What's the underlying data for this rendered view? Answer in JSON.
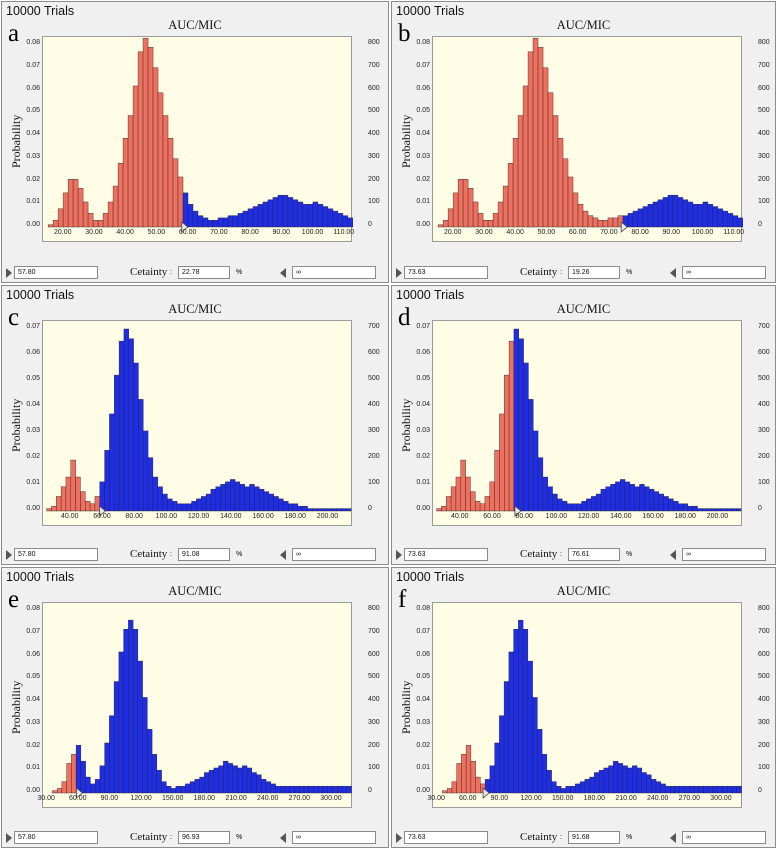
{
  "common": {
    "y_label": "Probability",
    "certainty_label": "Cetainty",
    "colon": ":",
    "percent": "%"
  },
  "panels": [
    {
      "trials": "10000 Trials",
      "letter": "a",
      "title": "AUC/MIC",
      "lower": "57.80",
      "certainty": "22.78",
      "upper": "∞"
    },
    {
      "trials": "10000 Trials",
      "letter": "b",
      "title": "AUC/MIC",
      "lower": "73.63",
      "certainty": "19.26",
      "upper": "∞"
    },
    {
      "trials": "10000 Trials",
      "letter": "c",
      "title": "AUC/MIC",
      "lower": "57.80",
      "certainty": "91.08",
      "upper": "∞"
    },
    {
      "trials": "10000 Trials",
      "letter": "d",
      "title": "AUC/MIC",
      "lower": "73.63",
      "certainty": "76.61",
      "upper": "∞"
    },
    {
      "trials": "10000 Trials",
      "letter": "e",
      "title": "AUC/MIC",
      "lower": "57.80",
      "certainty": "96.93",
      "upper": "∞"
    },
    {
      "trials": "10000 Trials",
      "letter": "f",
      "title": "AUC/MIC",
      "lower": "73.63",
      "certainty": "91.68",
      "upper": "∞"
    }
  ],
  "chart_data": [
    {
      "panel": "a",
      "type": "bar",
      "title": "AUC/MIC",
      "ylabel": "Probability",
      "xlim": [
        14,
        112
      ],
      "ylim": [
        0,
        0.08
      ],
      "yticks": [
        "0.00",
        "0.01",
        "0.02",
        "0.03",
        "0.04",
        "0.05",
        "0.06",
        "0.07",
        "0.08"
      ],
      "rticks": [
        "0",
        "100",
        "200",
        "300",
        "400",
        "500",
        "600",
        "700",
        "800"
      ],
      "xticks": [
        20,
        30,
        40,
        50,
        60,
        70,
        80,
        90,
        100,
        110
      ],
      "xtick_labels": [
        "20.00",
        "30.00",
        "40.00",
        "50.00",
        "60.00",
        "70.00",
        "80.00",
        "90.00",
        "100.00",
        "110.00"
      ],
      "bin_start": 15,
      "bin_width": 1.6,
      "threshold": 57.8,
      "color_below": "#f07060",
      "color_above": "#1f2ee6",
      "values": [
        0.001,
        0.003,
        0.008,
        0.015,
        0.021,
        0.021,
        0.017,
        0.011,
        0.006,
        0.003,
        0.003,
        0.006,
        0.011,
        0.018,
        0.028,
        0.039,
        0.049,
        0.062,
        0.077,
        0.083,
        0.079,
        0.07,
        0.059,
        0.049,
        0.039,
        0.03,
        0.022,
        0.015,
        0.01,
        0.007,
        0.005,
        0.004,
        0.003,
        0.003,
        0.004,
        0.004,
        0.005,
        0.005,
        0.006,
        0.007,
        0.008,
        0.009,
        0.01,
        0.011,
        0.012,
        0.013,
        0.014,
        0.014,
        0.013,
        0.012,
        0.011,
        0.01,
        0.01,
        0.011,
        0.01,
        0.009,
        0.008,
        0.007,
        0.006,
        0.005,
        0.004,
        0.003
      ]
    },
    {
      "panel": "b",
      "type": "bar",
      "title": "AUC/MIC",
      "ylabel": "Probability",
      "xlim": [
        14,
        112
      ],
      "ylim": [
        0,
        0.08
      ],
      "yticks": [
        "0.00",
        "0.01",
        "0.02",
        "0.03",
        "0.04",
        "0.05",
        "0.06",
        "0.07",
        "0.08"
      ],
      "rticks": [
        "0",
        "100",
        "200",
        "300",
        "400",
        "500",
        "600",
        "700",
        "800"
      ],
      "xticks": [
        20,
        30,
        40,
        50,
        60,
        70,
        80,
        90,
        100,
        110
      ],
      "xtick_labels": [
        "20.00",
        "30.00",
        "40.00",
        "50.00",
        "60.00",
        "70.00",
        "80.00",
        "90.00",
        "100.00",
        "110.00"
      ],
      "bin_start": 15,
      "bin_width": 1.6,
      "threshold": 73.63,
      "color_below": "#f07060",
      "color_above": "#1f2ee6",
      "values": [
        0.001,
        0.003,
        0.008,
        0.015,
        0.021,
        0.021,
        0.017,
        0.011,
        0.006,
        0.003,
        0.003,
        0.006,
        0.011,
        0.018,
        0.028,
        0.039,
        0.049,
        0.062,
        0.077,
        0.083,
        0.079,
        0.07,
        0.059,
        0.049,
        0.039,
        0.03,
        0.022,
        0.015,
        0.01,
        0.007,
        0.005,
        0.004,
        0.003,
        0.003,
        0.004,
        0.004,
        0.005,
        0.005,
        0.006,
        0.007,
        0.008,
        0.009,
        0.01,
        0.011,
        0.012,
        0.013,
        0.014,
        0.014,
        0.013,
        0.012,
        0.011,
        0.01,
        0.01,
        0.011,
        0.01,
        0.009,
        0.008,
        0.007,
        0.006,
        0.005,
        0.004,
        0.003
      ]
    },
    {
      "panel": "c",
      "type": "bar",
      "title": "AUC/MIC",
      "ylabel": "Probability",
      "xlim": [
        24,
        214
      ],
      "ylim": [
        0,
        0.075
      ],
      "yticks": [
        "0.00",
        "0.01",
        "0.02",
        "0.03",
        "0.04",
        "0.05",
        "0.06",
        "0.07"
      ],
      "rticks": [
        "0",
        "100",
        "200",
        "300",
        "400",
        "500",
        "600",
        "700"
      ],
      "xticks": [
        40,
        60,
        80,
        100,
        120,
        140,
        160,
        180,
        200
      ],
      "xtick_labels": [
        "40.00",
        "60.00",
        "80.00",
        "100.00",
        "120.00",
        "140.00",
        "160.00",
        "180.00",
        "200.00"
      ],
      "bin_start": 25,
      "bin_width": 3.0,
      "threshold": 57.8,
      "color_below": "#f07060",
      "color_above": "#1f2ee6",
      "values": [
        0.001,
        0.002,
        0.006,
        0.01,
        0.014,
        0.021,
        0.014,
        0.008,
        0.004,
        0.003,
        0.006,
        0.012,
        0.025,
        0.04,
        0.056,
        0.07,
        0.075,
        0.071,
        0.061,
        0.046,
        0.033,
        0.022,
        0.014,
        0.01,
        0.007,
        0.005,
        0.004,
        0.003,
        0.003,
        0.003,
        0.004,
        0.005,
        0.006,
        0.007,
        0.009,
        0.01,
        0.011,
        0.012,
        0.013,
        0.012,
        0.011,
        0.01,
        0.011,
        0.01,
        0.009,
        0.008,
        0.007,
        0.006,
        0.005,
        0.004,
        0.003,
        0.003,
        0.002,
        0.002,
        0.001,
        0.001,
        0.001,
        0.001,
        0.001,
        0.001,
        0.001,
        0.001,
        0.001
      ]
    },
    {
      "panel": "d",
      "type": "bar",
      "title": "AUC/MIC",
      "ylabel": "Probability",
      "xlim": [
        24,
        214
      ],
      "ylim": [
        0,
        0.075
      ],
      "yticks": [
        "0.00",
        "0.01",
        "0.02",
        "0.03",
        "0.04",
        "0.05",
        "0.06",
        "0.07"
      ],
      "rticks": [
        "0",
        "100",
        "200",
        "300",
        "400",
        "500",
        "600",
        "700"
      ],
      "xticks": [
        40,
        60,
        80,
        100,
        120,
        140,
        160,
        180,
        200
      ],
      "xtick_labels": [
        "40.00",
        "60.00",
        "80.00",
        "100.00",
        "120.00",
        "140.00",
        "160.00",
        "180.00",
        "200.00"
      ],
      "bin_start": 25,
      "bin_width": 3.0,
      "threshold": 73.63,
      "color_below": "#f07060",
      "color_above": "#1f2ee6",
      "values": [
        0.001,
        0.002,
        0.006,
        0.01,
        0.014,
        0.021,
        0.014,
        0.008,
        0.004,
        0.003,
        0.006,
        0.012,
        0.025,
        0.04,
        0.056,
        0.07,
        0.075,
        0.071,
        0.061,
        0.046,
        0.033,
        0.022,
        0.014,
        0.01,
        0.007,
        0.005,
        0.004,
        0.003,
        0.003,
        0.003,
        0.004,
        0.005,
        0.006,
        0.007,
        0.009,
        0.01,
        0.011,
        0.012,
        0.013,
        0.012,
        0.011,
        0.01,
        0.011,
        0.01,
        0.009,
        0.008,
        0.007,
        0.006,
        0.005,
        0.004,
        0.003,
        0.003,
        0.002,
        0.002,
        0.001,
        0.001,
        0.001,
        0.001,
        0.001,
        0.001,
        0.001,
        0.001,
        0.001
      ]
    },
    {
      "panel": "e",
      "type": "bar",
      "title": "AUC/MIC",
      "ylabel": "Probability",
      "xlim": [
        28,
        318
      ],
      "ylim": [
        0,
        0.08
      ],
      "yticks": [
        "0.00",
        "0.01",
        "0.02",
        "0.03",
        "0.04",
        "0.05",
        "0.06",
        "0.07",
        "0.08"
      ],
      "rticks": [
        "0",
        "100",
        "200",
        "300",
        "400",
        "500",
        "600",
        "700",
        "800"
      ],
      "xticks": [
        30,
        60,
        90,
        120,
        150,
        180,
        210,
        240,
        270,
        300
      ],
      "xtick_labels": [
        "30.00",
        "60.00",
        "90.00",
        "120.00",
        "150.00",
        "180.00",
        "210.00",
        "240.00",
        "270.00",
        "300.00"
      ],
      "bin_start": 35,
      "bin_width": 4.5,
      "threshold": 57.8,
      "color_below": "#f07060",
      "color_above": "#1f2ee6",
      "values": [
        0.001,
        0.002,
        0.005,
        0.013,
        0.017,
        0.021,
        0.014,
        0.007,
        0.004,
        0.006,
        0.012,
        0.022,
        0.034,
        0.049,
        0.062,
        0.072,
        0.076,
        0.072,
        0.058,
        0.042,
        0.028,
        0.017,
        0.01,
        0.005,
        0.003,
        0.002,
        0.003,
        0.003,
        0.004,
        0.005,
        0.006,
        0.007,
        0.009,
        0.01,
        0.011,
        0.012,
        0.014,
        0.013,
        0.012,
        0.011,
        0.012,
        0.011,
        0.009,
        0.008,
        0.006,
        0.005,
        0.004,
        0.003,
        0.003,
        0.003,
        0.003,
        0.003,
        0.003,
        0.003,
        0.003,
        0.003,
        0.003,
        0.003,
        0.003,
        0.003,
        0.003,
        0.003,
        0.003
      ]
    },
    {
      "panel": "f",
      "type": "bar",
      "title": "AUC/MIC",
      "ylabel": "Probability",
      "xlim": [
        28,
        318
      ],
      "ylim": [
        0,
        0.08
      ],
      "yticks": [
        "0.00",
        "0.01",
        "0.02",
        "0.03",
        "0.04",
        "0.05",
        "0.06",
        "0.07",
        "0.08"
      ],
      "rticks": [
        "0",
        "100",
        "200",
        "300",
        "400",
        "500",
        "600",
        "700",
        "800"
      ],
      "xticks": [
        30,
        60,
        90,
        120,
        150,
        180,
        210,
        240,
        270,
        300
      ],
      "xtick_labels": [
        "30.00",
        "60.00",
        "90.00",
        "120.00",
        "150.00",
        "180.00",
        "210.00",
        "240.00",
        "270.00",
        "300.00"
      ],
      "bin_start": 35,
      "bin_width": 4.5,
      "threshold": 73.63,
      "color_below": "#f07060",
      "color_above": "#1f2ee6",
      "values": [
        0.001,
        0.002,
        0.005,
        0.013,
        0.017,
        0.021,
        0.014,
        0.007,
        0.004,
        0.006,
        0.012,
        0.022,
        0.034,
        0.049,
        0.062,
        0.072,
        0.076,
        0.072,
        0.058,
        0.042,
        0.028,
        0.017,
        0.01,
        0.005,
        0.003,
        0.002,
        0.003,
        0.003,
        0.004,
        0.005,
        0.006,
        0.007,
        0.009,
        0.01,
        0.011,
        0.012,
        0.014,
        0.013,
        0.012,
        0.011,
        0.012,
        0.011,
        0.009,
        0.008,
        0.006,
        0.005,
        0.004,
        0.003,
        0.003,
        0.003,
        0.003,
        0.003,
        0.003,
        0.003,
        0.003,
        0.003,
        0.003,
        0.003,
        0.003,
        0.003,
        0.003,
        0.003,
        0.003
      ]
    }
  ]
}
